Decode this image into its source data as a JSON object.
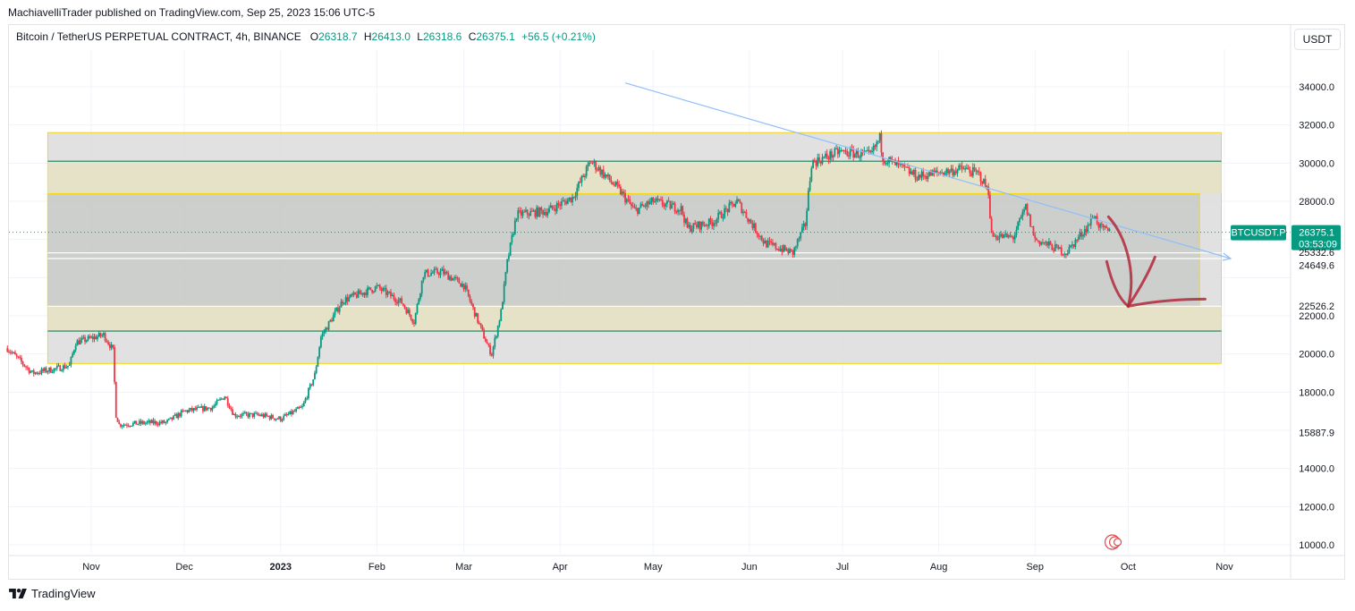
{
  "publisher_line": "MachiavelliTrader published on TradingView.com, Sep 25, 2023 15:06 UTC-5",
  "legend": {
    "symbol": "Bitcoin / TetherUS PERPETUAL CONTRACT, 4h, BINANCE",
    "open_label": "O",
    "open": "26318.7",
    "high_label": "H",
    "high": "26413.0",
    "low_label": "L",
    "low": "26318.6",
    "close_label": "C",
    "close": "26375.1",
    "change": "+56.5 (+0.21%)"
  },
  "currency_button": "USDT",
  "footer_brand": "TradingView",
  "colors": {
    "up": "#089981",
    "down": "#f23645",
    "trendline": "#90bff9",
    "zone_fill": "#d6d6d6",
    "zone_border": "#f5d80f",
    "level_line": "#1a7d5e",
    "arrow": "#b2283a",
    "price_tag": "#089981"
  },
  "chart_data": {
    "type": "candlestick",
    "y_axis": {
      "ticks": [
        34000,
        32000,
        30000,
        28000,
        22000,
        20000,
        18000,
        14000,
        12000,
        10000
      ],
      "tick_labels": [
        "34000.0",
        "32000.0",
        "30000.0",
        "28000.0",
        "22000.0",
        "20000.0",
        "18000.0",
        "14000.0",
        "12000.0",
        "10000.0"
      ],
      "marked_levels": [
        {
          "value": 26375.1,
          "label": "26375.1",
          "sublabel": "03:53:09",
          "kind": "last_price"
        },
        {
          "value": 25332.6,
          "label": "25332.6",
          "kind": "level"
        },
        {
          "value": 24649.6,
          "label": "24649.6",
          "kind": "level"
        },
        {
          "value": 22526.2,
          "label": "22526.2",
          "kind": "level"
        },
        {
          "value": 15887.9,
          "label": "15887.9",
          "kind": "level"
        }
      ],
      "symbol_tag": "BTCUSDT.P"
    },
    "x_axis": {
      "labels": [
        {
          "date": "2022-11-01",
          "text": "Nov"
        },
        {
          "date": "2022-12-01",
          "text": "Dec"
        },
        {
          "date": "2023-01-01",
          "text": "2023"
        },
        {
          "date": "2023-02-01",
          "text": "Feb"
        },
        {
          "date": "2023-03-01",
          "text": "Mar"
        },
        {
          "date": "2023-04-01",
          "text": "Apr"
        },
        {
          "date": "2023-05-01",
          "text": "May"
        },
        {
          "date": "2023-06-01",
          "text": "Jun"
        },
        {
          "date": "2023-07-01",
          "text": "Jul"
        },
        {
          "date": "2023-08-01",
          "text": "Aug"
        },
        {
          "date": "2023-09-01",
          "text": "Sep"
        },
        {
          "date": "2023-10-01",
          "text": "Oct"
        },
        {
          "date": "2023-11-01",
          "text": "Nov"
        }
      ]
    },
    "price_path": [
      [
        "2022-10-05",
        20300
      ],
      [
        "2022-10-13",
        19000
      ],
      [
        "2022-10-20",
        19200
      ],
      [
        "2022-10-25",
        19400
      ],
      [
        "2022-10-27",
        20600
      ],
      [
        "2022-11-05",
        21000
      ],
      [
        "2022-11-08",
        20200
      ],
      [
        "2022-11-09",
        16800
      ],
      [
        "2022-11-10",
        16300
      ],
      [
        "2022-11-20",
        16400
      ],
      [
        "2022-11-25",
        16400
      ],
      [
        "2022-12-01",
        17000
      ],
      [
        "2022-12-10",
        17200
      ],
      [
        "2022-12-14",
        17800
      ],
      [
        "2022-12-17",
        16800
      ],
      [
        "2022-12-25",
        16800
      ],
      [
        "2023-01-01",
        16600
      ],
      [
        "2023-01-08",
        17200
      ],
      [
        "2023-01-12",
        18900
      ],
      [
        "2023-01-14",
        20900
      ],
      [
        "2023-01-21",
        22800
      ],
      [
        "2023-02-01",
        23500
      ],
      [
        "2023-02-09",
        22700
      ],
      [
        "2023-02-13",
        21700
      ],
      [
        "2023-02-16",
        24200
      ],
      [
        "2023-02-22",
        24300
      ],
      [
        "2023-03-01",
        23600
      ],
      [
        "2023-03-09",
        20300
      ],
      [
        "2023-03-10",
        20000
      ],
      [
        "2023-03-13",
        22200
      ],
      [
        "2023-03-15",
        24800
      ],
      [
        "2023-03-18",
        27300
      ],
      [
        "2023-03-28",
        27500
      ],
      [
        "2023-04-05",
        28200
      ],
      [
        "2023-04-11",
        30100
      ],
      [
        "2023-04-20",
        28600
      ],
      [
        "2023-04-25",
        27500
      ],
      [
        "2023-05-01",
        28000
      ],
      [
        "2023-05-10",
        27600
      ],
      [
        "2023-05-12",
        26600
      ],
      [
        "2023-05-20",
        26900
      ],
      [
        "2023-05-28",
        28000
      ],
      [
        "2023-06-01",
        27000
      ],
      [
        "2023-06-06",
        25800
      ],
      [
        "2023-06-15",
        25300
      ],
      [
        "2023-06-19",
        26800
      ],
      [
        "2023-06-21",
        30000
      ],
      [
        "2023-06-30",
        30600
      ],
      [
        "2023-07-10",
        30400
      ],
      [
        "2023-07-13",
        31300
      ],
      [
        "2023-07-14",
        30300
      ],
      [
        "2023-07-25",
        29300
      ],
      [
        "2023-08-01",
        29500
      ],
      [
        "2023-08-09",
        29700
      ],
      [
        "2023-08-14",
        29400
      ],
      [
        "2023-08-17",
        28500
      ],
      [
        "2023-08-18",
        26200
      ],
      [
        "2023-08-25",
        26100
      ],
      [
        "2023-08-29",
        27700
      ],
      [
        "2023-09-01",
        26000
      ],
      [
        "2023-09-11",
        25300
      ],
      [
        "2023-09-18",
        26700
      ],
      [
        "2023-09-20",
        27300
      ],
      [
        "2023-09-22",
        26600
      ],
      [
        "2023-09-25",
        26375.1
      ]
    ],
    "last_price": 26375.1,
    "annotations": {
      "outer_zone": {
        "top": 31600,
        "bottom": 19500,
        "from": "2022-10-18",
        "to": "2023-10-31"
      },
      "inner_zone": {
        "top": 28400,
        "bottom": 22500,
        "from": "2022-10-18",
        "to": "2023-10-24"
      },
      "horizontal_levels": [
        30100,
        21200,
        25300,
        25000,
        22500
      ],
      "trendline": {
        "from": [
          "2023-04-22",
          34200
        ],
        "to": [
          "2023-11-03",
          25000
        ]
      },
      "hand_drawn_arrow_target": [
        "2023-10-01",
        22500
      ]
    }
  }
}
